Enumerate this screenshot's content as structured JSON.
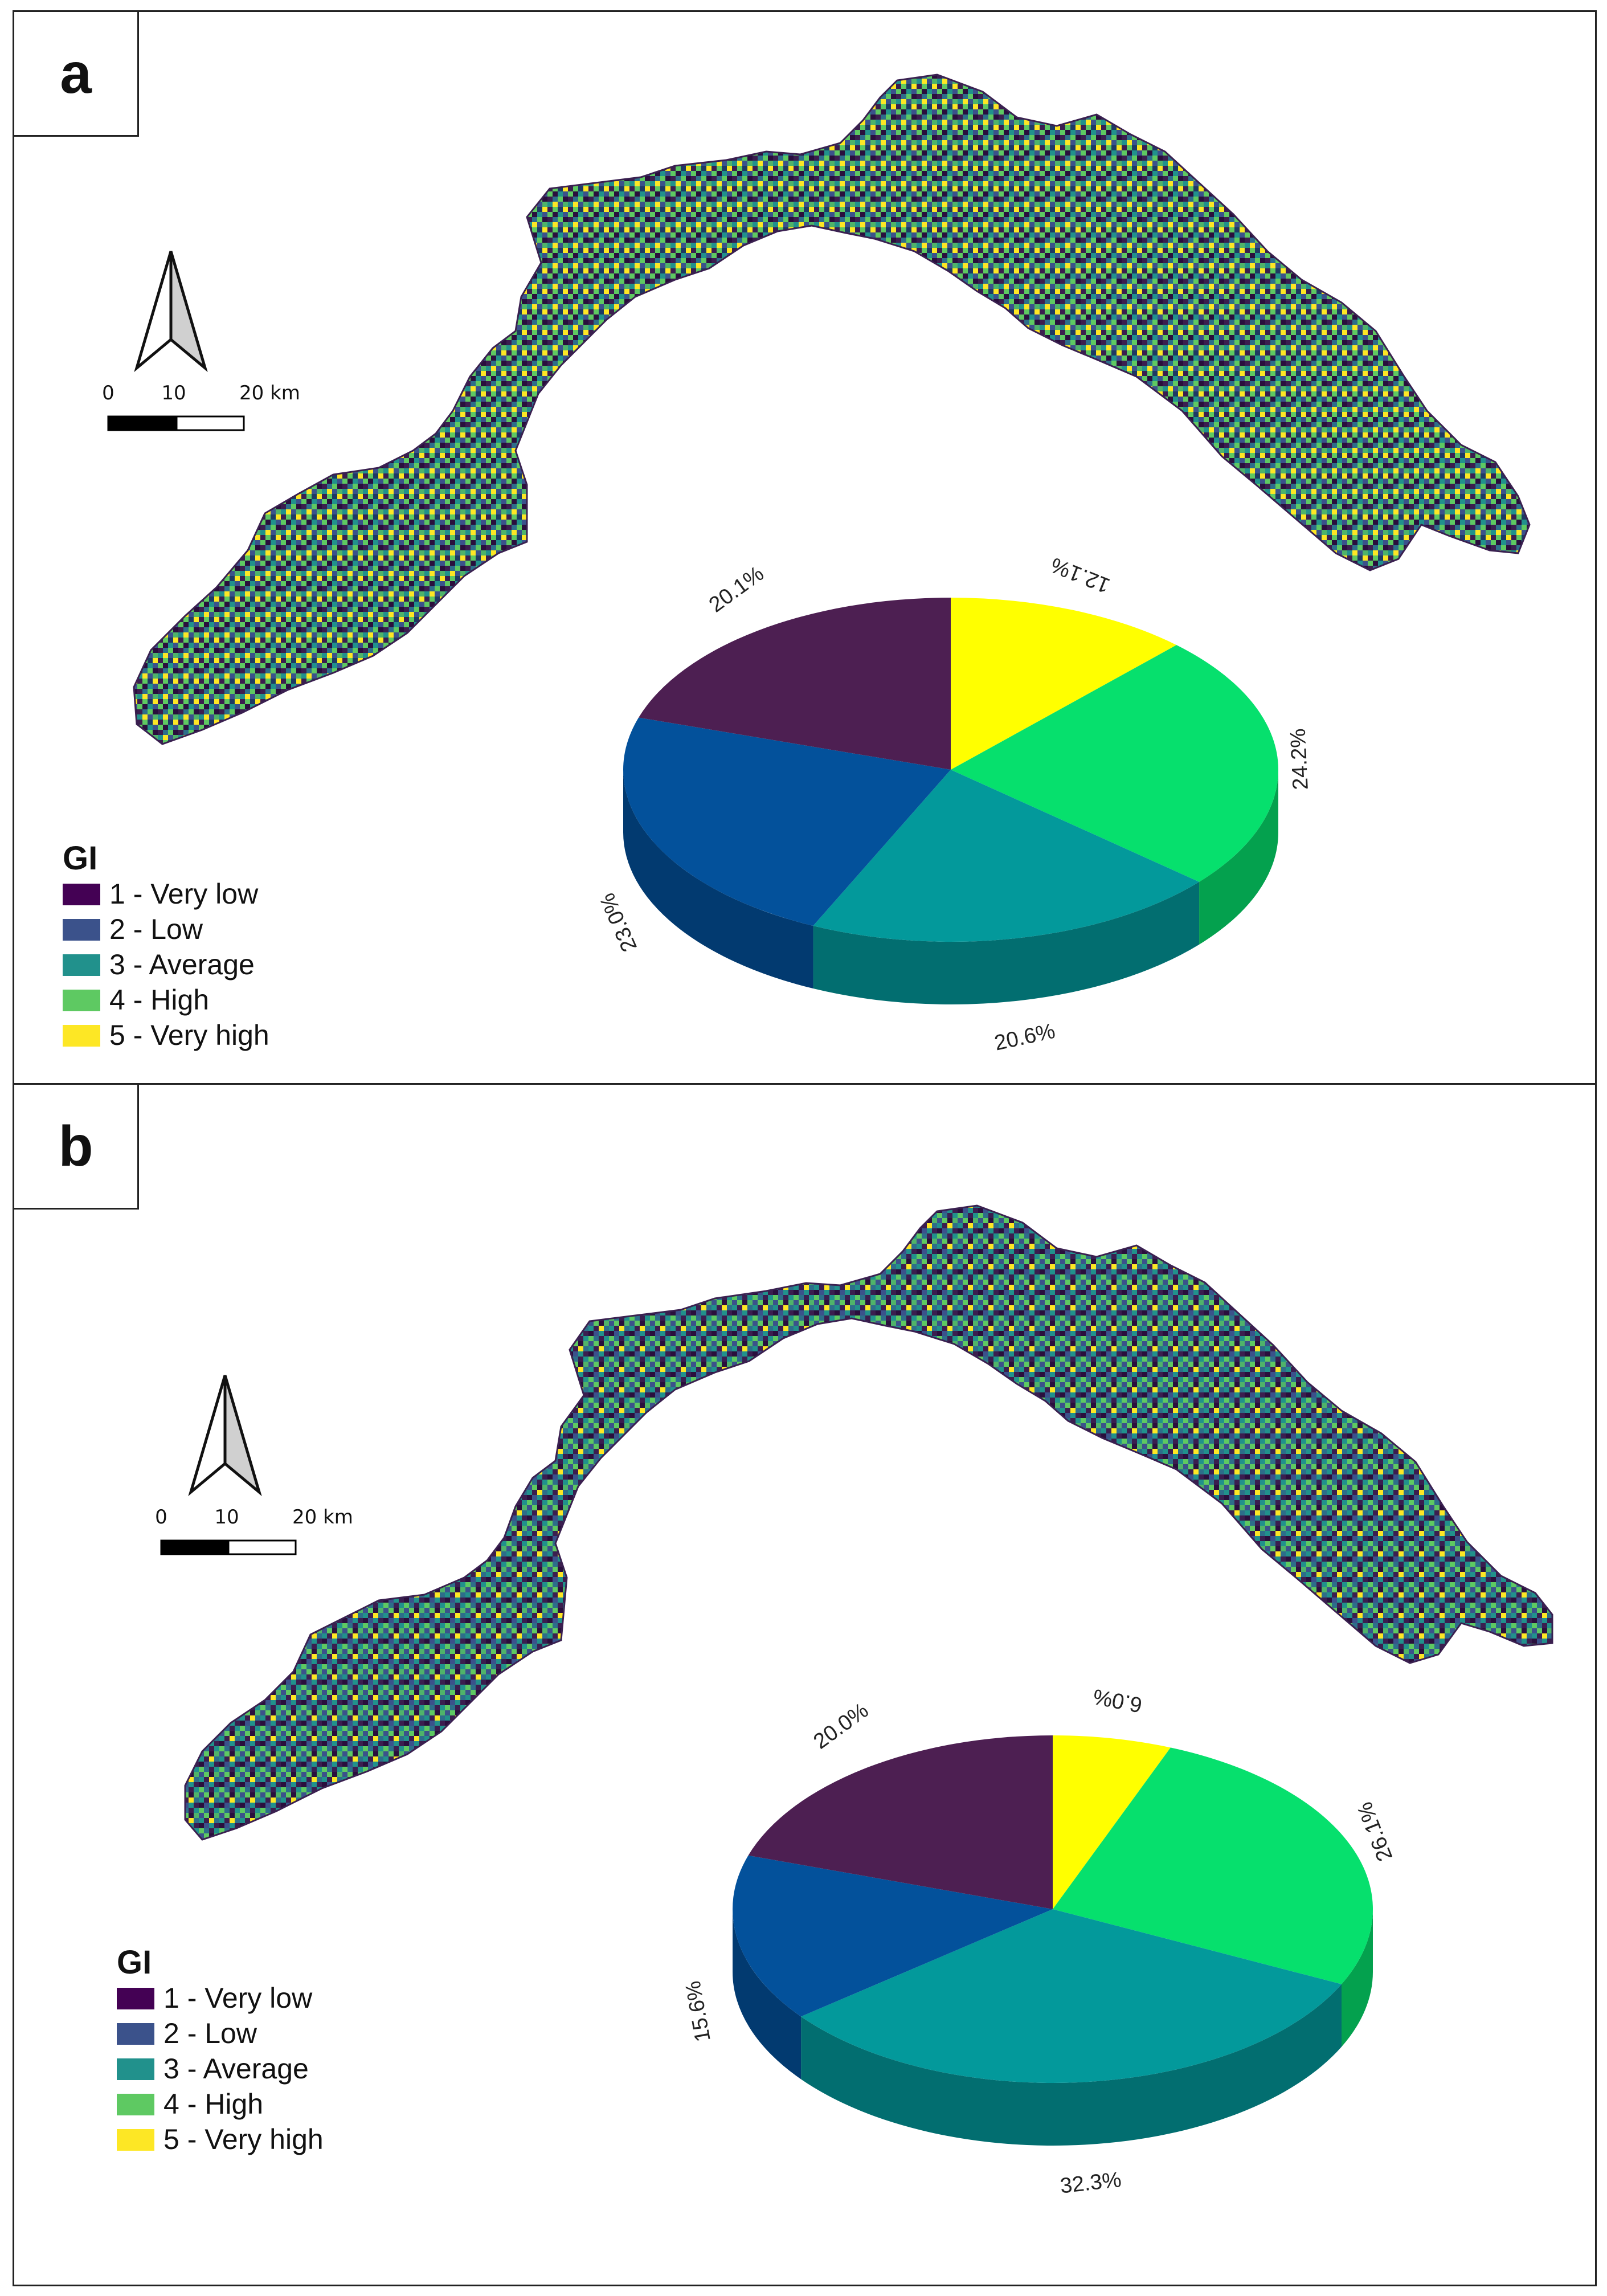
{
  "colors": {
    "very_low": "#4d1f52",
    "low": "#03519b",
    "average": "#03999b",
    "high": "#06e06d",
    "very_high": "#ffff00",
    "legend_very_low": "#440154",
    "legend_low": "#3b528b",
    "legend_average": "#21918c",
    "legend_high": "#5ec962",
    "legend_very_high": "#fde725"
  },
  "panels": [
    {
      "label": "a",
      "legend": {
        "title": "GI",
        "items": [
          "1 - Very low",
          "2 - Low",
          "3 - Average",
          "4 - High",
          "5 - Very high"
        ]
      },
      "scale_bar": {
        "ticks": [
          "0",
          "10",
          "20 km"
        ]
      }
    },
    {
      "label": "b",
      "legend": {
        "title": "GI",
        "items": [
          "1 - Very low",
          "2 - Low",
          "3 - Average",
          "4 - High",
          "5 - Very high"
        ]
      },
      "scale_bar": {
        "ticks": [
          "0",
          "10",
          "20 km"
        ]
      }
    }
  ],
  "chart_data": [
    {
      "type": "pie",
      "panel": "a",
      "categories": [
        "1 - Very low",
        "2 - Low",
        "3 - Average",
        "4 - High",
        "5 - Very high"
      ],
      "values": [
        20.1,
        23.0,
        20.6,
        24.2,
        12.1
      ],
      "labels": [
        "20.1%",
        "23.0%",
        "20.6%",
        "24.2%",
        "12.1%"
      ]
    },
    {
      "type": "pie",
      "panel": "b",
      "categories": [
        "1 - Very low",
        "2 - Low",
        "3 - Average",
        "4 - High",
        "5 - Very high"
      ],
      "values": [
        20.0,
        15.6,
        32.3,
        26.1,
        6.0
      ],
      "labels": [
        "20.0%",
        "15.6%",
        "32.3%",
        "26.1%",
        "6.0%"
      ]
    }
  ]
}
